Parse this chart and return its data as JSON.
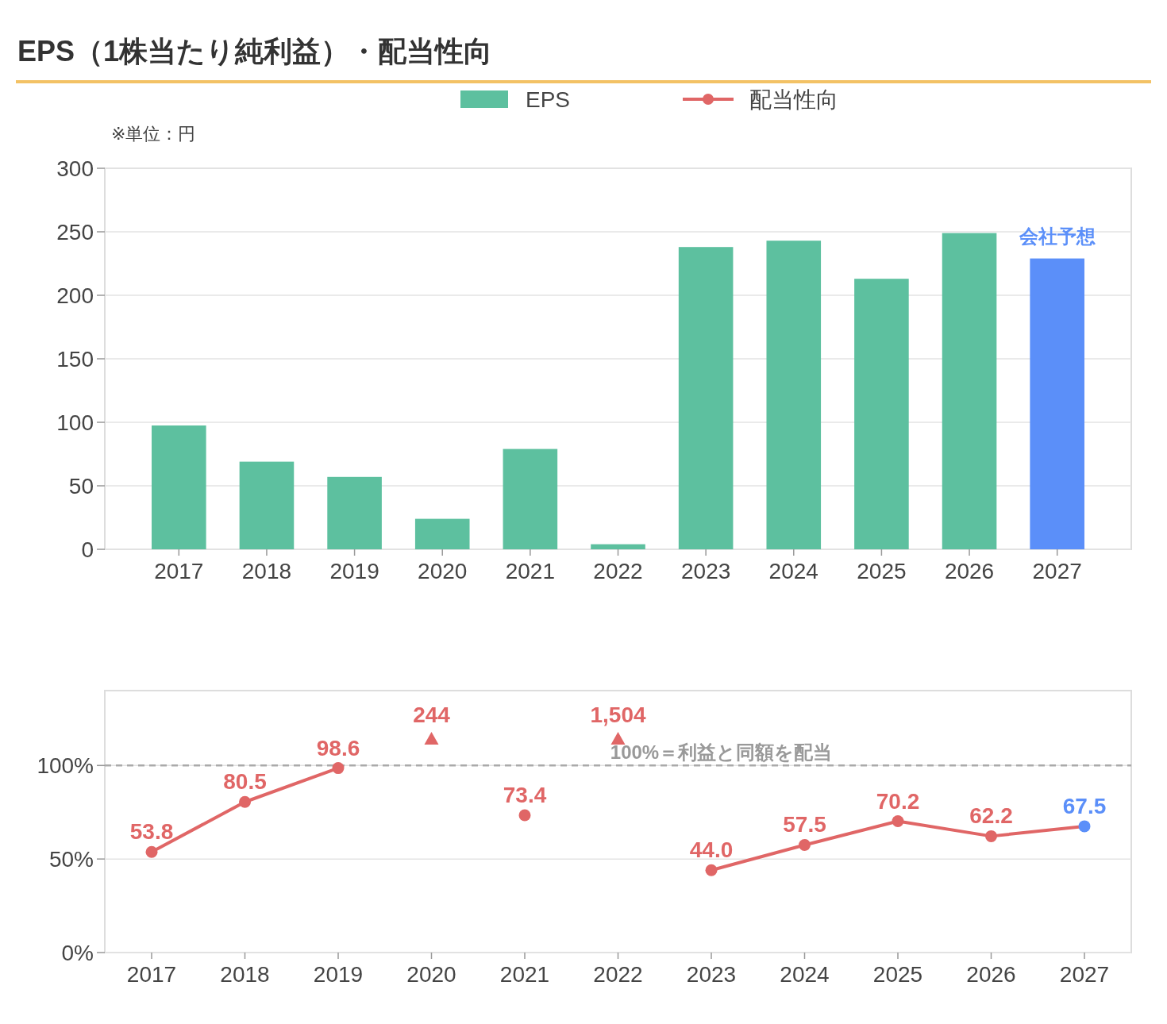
{
  "chart_data": [
    {
      "type": "bar",
      "title": "EPS（1株当たり純利益）・配当性向",
      "ylabel": "※単位：円",
      "categories": [
        "2017",
        "2018",
        "2019",
        "2020",
        "2021",
        "2022",
        "2023",
        "2024",
        "2025",
        "2026",
        "2027"
      ],
      "series": [
        {
          "name": "EPS",
          "color": "#5dc09f",
          "colors": [
            "#5dc09f",
            "#5dc09f",
            "#5dc09f",
            "#5dc09f",
            "#5dc09f",
            "#5dc09f",
            "#5dc09f",
            "#5dc09f",
            "#5dc09f",
            "#5dc09f",
            "#5b8ff9"
          ],
          "values": [
            97.5,
            69,
            57,
            24,
            79,
            4,
            238,
            243,
            213,
            249,
            229
          ]
        }
      ],
      "ylim": [
        0,
        300
      ],
      "yticks": [
        0,
        50,
        100,
        150,
        200,
        250,
        300
      ],
      "grid": "y",
      "legend": "top",
      "annotations": [
        {
          "text": "会社予想",
          "x": "2027",
          "y": 229
        }
      ]
    },
    {
      "type": "line",
      "categories": [
        "2017",
        "2018",
        "2019",
        "2020",
        "2021",
        "2022",
        "2023",
        "2024",
        "2025",
        "2026",
        "2027"
      ],
      "series": [
        {
          "name": "配当性向",
          "color": "#e06666",
          "colors": [
            "#e06666",
            "#e06666",
            "#e06666",
            "#e06666",
            "#e06666",
            "#e06666",
            "#e06666",
            "#e06666",
            "#e06666",
            "#e06666",
            "#5b8ff9"
          ],
          "values": [
            53.8,
            80.5,
            98.6,
            null,
            73.4,
            null,
            44.0,
            57.5,
            70.2,
            62.2,
            67.5
          ],
          "value_labels": [
            "53.8",
            "80.5",
            "98.6",
            null,
            "73.4",
            null,
            "44.0",
            "57.5",
            "70.2",
            "62.2",
            "67.5"
          ]
        }
      ],
      "annotations": [
        "244",
        "1,504"
      ],
      "ylim": [
        0,
        140
      ],
      "yticks": [
        {
          "value": 0,
          "label": "0%"
        },
        {
          "value": 50,
          "label": "50%"
        },
        {
          "value": 100,
          "label": "100%"
        }
      ],
      "grid": "y",
      "legend": "top",
      "marker": "circle",
      "line_style": "solid",
      "ref_lines": [
        {
          "axis": "y",
          "value": 100,
          "label": "100%＝利益と同額を配当",
          "color": "#aaaaaa",
          "line_style": "dashed"
        }
      ]
    }
  ]
}
